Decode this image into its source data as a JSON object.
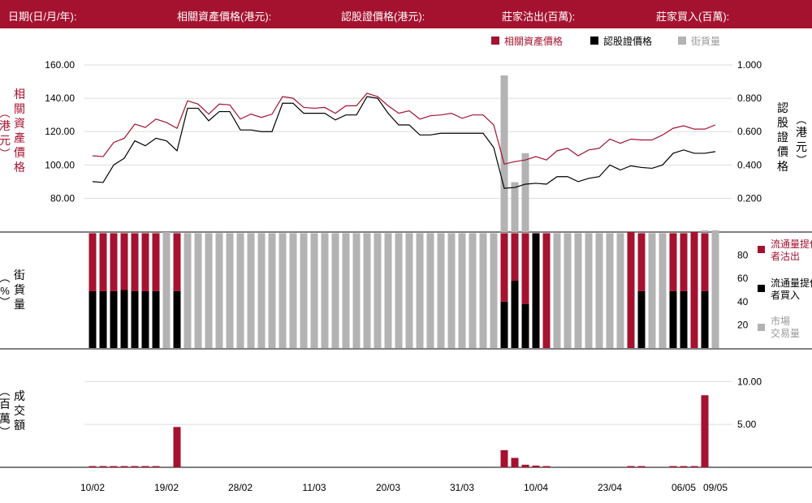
{
  "header": {
    "date": "日期(日/月/年):",
    "underlying": "相關資產價格(港元):",
    "warrant": "認股證價格(港元):",
    "sold": "莊家沽出(百萬):",
    "bought": "莊家買入(百萬):"
  },
  "colors": {
    "header_bg": "#a5122f",
    "underlying": "#a5122f",
    "warrant": "#000000",
    "market": "#b3b3b3",
    "grid": "#dddddd"
  },
  "chart_data": [
    {
      "type": "line",
      "legend": [
        "相關資產價格",
        "認股證價格",
        "街貨量"
      ],
      "legend_placement": "top-right",
      "left_axis": {
        "label": "相關資產價格（港元）",
        "ticks": [
          "160.00",
          "140.00",
          "120.00",
          "100.00",
          "80.00"
        ],
        "ylim": [
          70,
          160
        ]
      },
      "right_axis": {
        "label": "認股證價格（港元）",
        "ticks": [
          "1.000",
          "0.800",
          "0.600",
          "0.400",
          "0.200"
        ],
        "ylim": [
          0.1,
          1.0
        ]
      },
      "series": [
        {
          "name": "相關資產價格",
          "axis": "left",
          "values": [
            105.5,
            105,
            113.5,
            116,
            124.5,
            122.5,
            127.5,
            125.5,
            122,
            138.5,
            136.5,
            130.5,
            136.5,
            136,
            127.5,
            130.5,
            128.5,
            130.5,
            141,
            140,
            134.5,
            134,
            134.5,
            131,
            135.5,
            135.5,
            143,
            141,
            135.5,
            131,
            132.5,
            127.5,
            129.5,
            130,
            131,
            128,
            130,
            130,
            124,
            100.5,
            102,
            103,
            105,
            103,
            108.5,
            110,
            105.5,
            109,
            110,
            115.5,
            113,
            115.5,
            115,
            115,
            118,
            122,
            123.5,
            121.5,
            121.5,
            124
          ]
        },
        {
          "name": "認股證價格",
          "axis": "right",
          "values": [
            0.3,
            0.295,
            0.4,
            0.44,
            0.545,
            0.515,
            0.56,
            0.545,
            0.485,
            0.74,
            0.74,
            0.665,
            0.72,
            0.72,
            0.61,
            0.61,
            0.6,
            0.6,
            0.77,
            0.77,
            0.71,
            0.71,
            0.71,
            0.67,
            0.7,
            0.7,
            0.81,
            0.8,
            0.71,
            0.64,
            0.64,
            0.58,
            0.58,
            0.59,
            0.59,
            0.59,
            0.59,
            0.59,
            0.505,
            0.26,
            0.265,
            0.285,
            0.29,
            0.285,
            0.33,
            0.33,
            0.3,
            0.32,
            0.33,
            0.4,
            0.37,
            0.395,
            0.385,
            0.38,
            0.4,
            0.47,
            0.49,
            0.47,
            0.47,
            0.48
          ]
        }
      ]
    },
    {
      "type": "bar",
      "stacked": true,
      "y_axis": {
        "label": "街貨量（%）",
        "ticks": [
          "80",
          "60",
          "40",
          "20"
        ],
        "ylim": [
          0,
          100
        ]
      },
      "legend": [
        "流通量提供者沽出",
        "流通量提供者買入",
        "市場交易量"
      ],
      "series": [
        {
          "name": "流通量提供者買入",
          "color": "#000000",
          "values": [
            49,
            49,
            49,
            50,
            49,
            49,
            49,
            0,
            49,
            0,
            0,
            0,
            0,
            0,
            0,
            0,
            0,
            0,
            0,
            0,
            0,
            0,
            0,
            0,
            0,
            0,
            0,
            0,
            0,
            0,
            0,
            0,
            0,
            0,
            0,
            0,
            0,
            0,
            0,
            40,
            58,
            38,
            99,
            0,
            0,
            0,
            0,
            0,
            0,
            0,
            0,
            0,
            49,
            0,
            0,
            49,
            49,
            0,
            49,
            0
          ]
        },
        {
          "name": "流通量提供者沽出",
          "color": "#a5122f",
          "values": [
            50,
            50,
            50,
            49,
            50,
            50,
            50,
            0,
            50,
            0,
            0,
            0,
            0,
            0,
            0,
            0,
            0,
            0,
            0,
            0,
            0,
            0,
            0,
            0,
            0,
            0,
            0,
            0,
            0,
            0,
            0,
            0,
            0,
            0,
            0,
            0,
            0,
            0,
            0,
            59,
            41,
            61,
            0,
            99,
            0,
            0,
            0,
            0,
            0,
            0,
            0,
            100,
            50,
            0,
            0,
            50,
            50,
            100,
            50,
            0
          ]
        },
        {
          "name": "市場交易量",
          "color": "#b3b3b3",
          "values": [
            0,
            0,
            0,
            0,
            0,
            0,
            0,
            100,
            0,
            99,
            99,
            99,
            99,
            99,
            99,
            99,
            99,
            99,
            99,
            99,
            99,
            99,
            99,
            99,
            99,
            99,
            99,
            99,
            99,
            99,
            99,
            99,
            99,
            99,
            99,
            99,
            99,
            99,
            99,
            0,
            0,
            0,
            0,
            0,
            99,
            99,
            99,
            99,
            99,
            99,
            99,
            0,
            0,
            99,
            99,
            0,
            0,
            0,
            0,
            100
          ]
        }
      ],
      "overflow_above_zero": [
        0,
        0,
        0,
        0,
        0,
        0,
        0,
        0,
        0,
        0,
        0,
        0,
        0,
        0,
        0,
        0,
        0,
        0,
        0,
        0,
        0,
        0,
        0,
        0,
        0,
        0,
        0,
        0,
        0,
        0,
        0,
        0,
        0,
        0,
        0,
        0,
        0,
        0,
        0,
        135,
        43,
        68,
        0,
        0,
        0,
        0,
        0,
        0,
        0,
        0,
        0,
        0,
        0,
        0,
        0,
        0,
        0,
        0,
        1.5,
        1.5
      ]
    },
    {
      "type": "bar",
      "y_axis": {
        "label": "成交額（百萬）",
        "ticks": [
          "10.00",
          "5.00"
        ],
        "ylim": [
          0,
          10.5
        ]
      },
      "values": [
        0.1,
        0.1,
        0.1,
        0.1,
        0.1,
        0.1,
        0.1,
        0,
        4.7,
        0,
        0,
        0,
        0,
        0,
        0,
        0,
        0,
        0,
        0,
        0,
        0,
        0,
        0,
        0,
        0,
        0,
        0,
        0,
        0,
        0,
        0,
        0,
        0,
        0,
        0,
        0,
        0,
        0,
        0,
        2.0,
        1.1,
        0.3,
        0.2,
        0.1,
        0,
        0,
        0,
        0,
        0,
        0,
        0,
        0.1,
        0.1,
        0,
        0,
        0.1,
        0.1,
        0.1,
        8.4,
        0
      ]
    }
  ],
  "x_axis": {
    "ticks": [
      {
        "index": 0,
        "label": "10/02"
      },
      {
        "index": 7,
        "label": "19/02"
      },
      {
        "index": 14,
        "label": "28/02"
      },
      {
        "index": 21,
        "label": "11/03"
      },
      {
        "index": 28,
        "label": "20/03"
      },
      {
        "index": 35,
        "label": "31/03"
      },
      {
        "index": 42,
        "label": "10/04"
      },
      {
        "index": 49,
        "label": "23/04"
      },
      {
        "index": 56,
        "label": "06/05"
      },
      {
        "index": 59,
        "label": "09/05"
      }
    ]
  }
}
